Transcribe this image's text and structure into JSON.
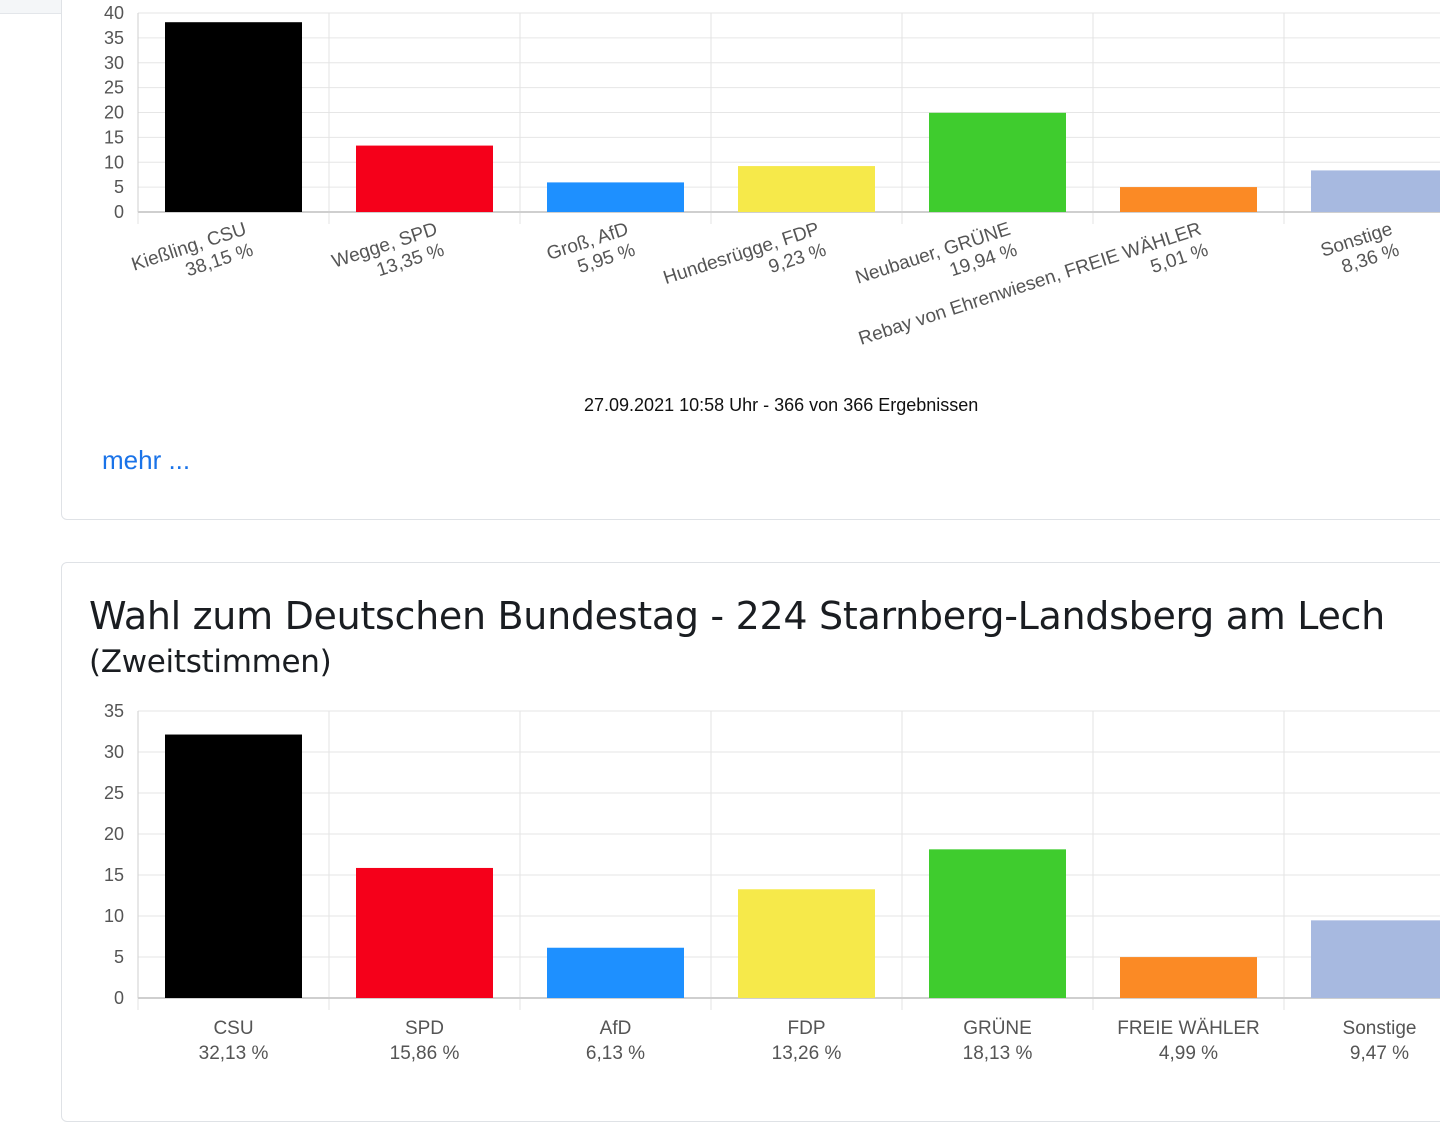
{
  "timestamp": "27.09.2021 10:58 Uhr - 366 von 366 Ergebnissen",
  "more_link": "mehr ...",
  "section2": {
    "title": "Wahl zum Deutschen Bundestag - 224 Starnberg-Landsberg am Lech",
    "subtitle": "(Zweitstimmen)"
  },
  "chart_data": [
    {
      "type": "bar",
      "title": "",
      "categories": [
        "Kießling, CSU",
        "Wegge, SPD",
        "Groß, AfD",
        "Hundesrügge, FDP",
        "Neubauer, GRÜNE",
        "Rebay von Ehrenwiesen, FREIE WÄHLER",
        "Sonstige"
      ],
      "value_labels": [
        "38,15 %",
        "13,35 %",
        "5,95 %",
        "9,23 %",
        "19,94 %",
        "5,01 %",
        "8,36 %"
      ],
      "values": [
        38.15,
        13.35,
        5.95,
        9.23,
        19.94,
        5.01,
        8.36
      ],
      "colors": [
        "#000000",
        "#f5001a",
        "#1e90ff",
        "#f6e94a",
        "#3fcc2e",
        "#fb8a25",
        "#a7b9e0"
      ],
      "yticks": [
        0,
        5,
        10,
        15,
        20,
        25,
        30,
        35,
        40
      ],
      "ylim": [
        0,
        40
      ],
      "xlabel": "",
      "ylabel": "",
      "grid": true
    },
    {
      "type": "bar",
      "title": "",
      "categories": [
        "CSU",
        "SPD",
        "AfD",
        "FDP",
        "GRÜNE",
        "FREIE WÄHLER",
        "Sonstige"
      ],
      "value_labels": [
        "32,13 %",
        "15,86 %",
        "6,13 %",
        "13,26 %",
        "18,13 %",
        "4,99 %",
        "9,47 %"
      ],
      "values": [
        32.13,
        15.86,
        6.13,
        13.26,
        18.13,
        4.99,
        9.47
      ],
      "colors": [
        "#000000",
        "#f5001a",
        "#1e90ff",
        "#f6e94a",
        "#3fcc2e",
        "#fb8a25",
        "#a7b9e0"
      ],
      "yticks": [
        0,
        5,
        10,
        15,
        20,
        25,
        30,
        35
      ],
      "ylim": [
        0,
        35
      ],
      "xlabel": "",
      "ylabel": "",
      "grid": true
    }
  ]
}
